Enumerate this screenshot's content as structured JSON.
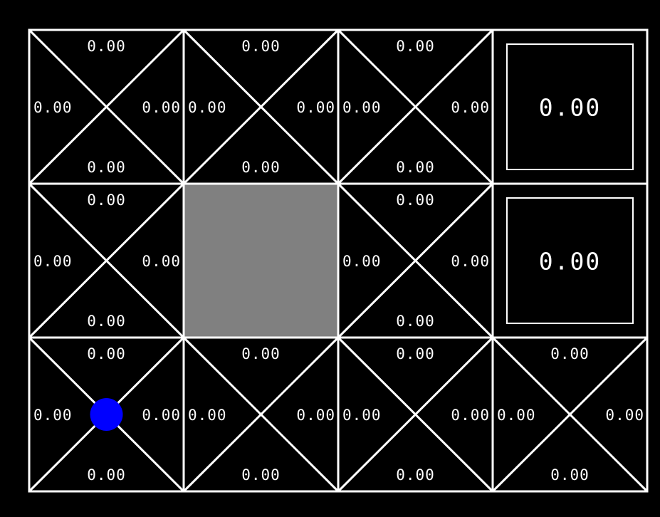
{
  "gridworld": {
    "rows": 3,
    "cols": 4,
    "colors": {
      "background": "#000000",
      "lines": "#ffffff",
      "text": "#ffffff",
      "wall": "#808080",
      "agent": "#0000ff"
    },
    "agent": {
      "row": 2,
      "col": 0
    },
    "cells": [
      [
        {
          "type": "state",
          "q": {
            "north": "0.00",
            "south": "0.00",
            "west": "0.00",
            "east": "0.00"
          }
        },
        {
          "type": "state",
          "q": {
            "north": "0.00",
            "south": "0.00",
            "west": "0.00",
            "east": "0.00"
          }
        },
        {
          "type": "state",
          "q": {
            "north": "0.00",
            "south": "0.00",
            "west": "0.00",
            "east": "0.00"
          }
        },
        {
          "type": "terminal",
          "value": "0.00"
        }
      ],
      [
        {
          "type": "state",
          "q": {
            "north": "0.00",
            "south": "0.00",
            "west": "0.00",
            "east": "0.00"
          }
        },
        {
          "type": "wall"
        },
        {
          "type": "state",
          "q": {
            "north": "0.00",
            "south": "0.00",
            "west": "0.00",
            "east": "0.00"
          }
        },
        {
          "type": "terminal",
          "value": "0.00"
        }
      ],
      [
        {
          "type": "state",
          "q": {
            "north": "0.00",
            "south": "0.00",
            "west": "0.00",
            "east": "0.00"
          }
        },
        {
          "type": "state",
          "q": {
            "north": "0.00",
            "south": "0.00",
            "west": "0.00",
            "east": "0.00"
          }
        },
        {
          "type": "state",
          "q": {
            "north": "0.00",
            "south": "0.00",
            "west": "0.00",
            "east": "0.00"
          }
        },
        {
          "type": "state",
          "q": {
            "north": "0.00",
            "south": "0.00",
            "west": "0.00",
            "east": "0.00"
          }
        }
      ]
    ]
  }
}
